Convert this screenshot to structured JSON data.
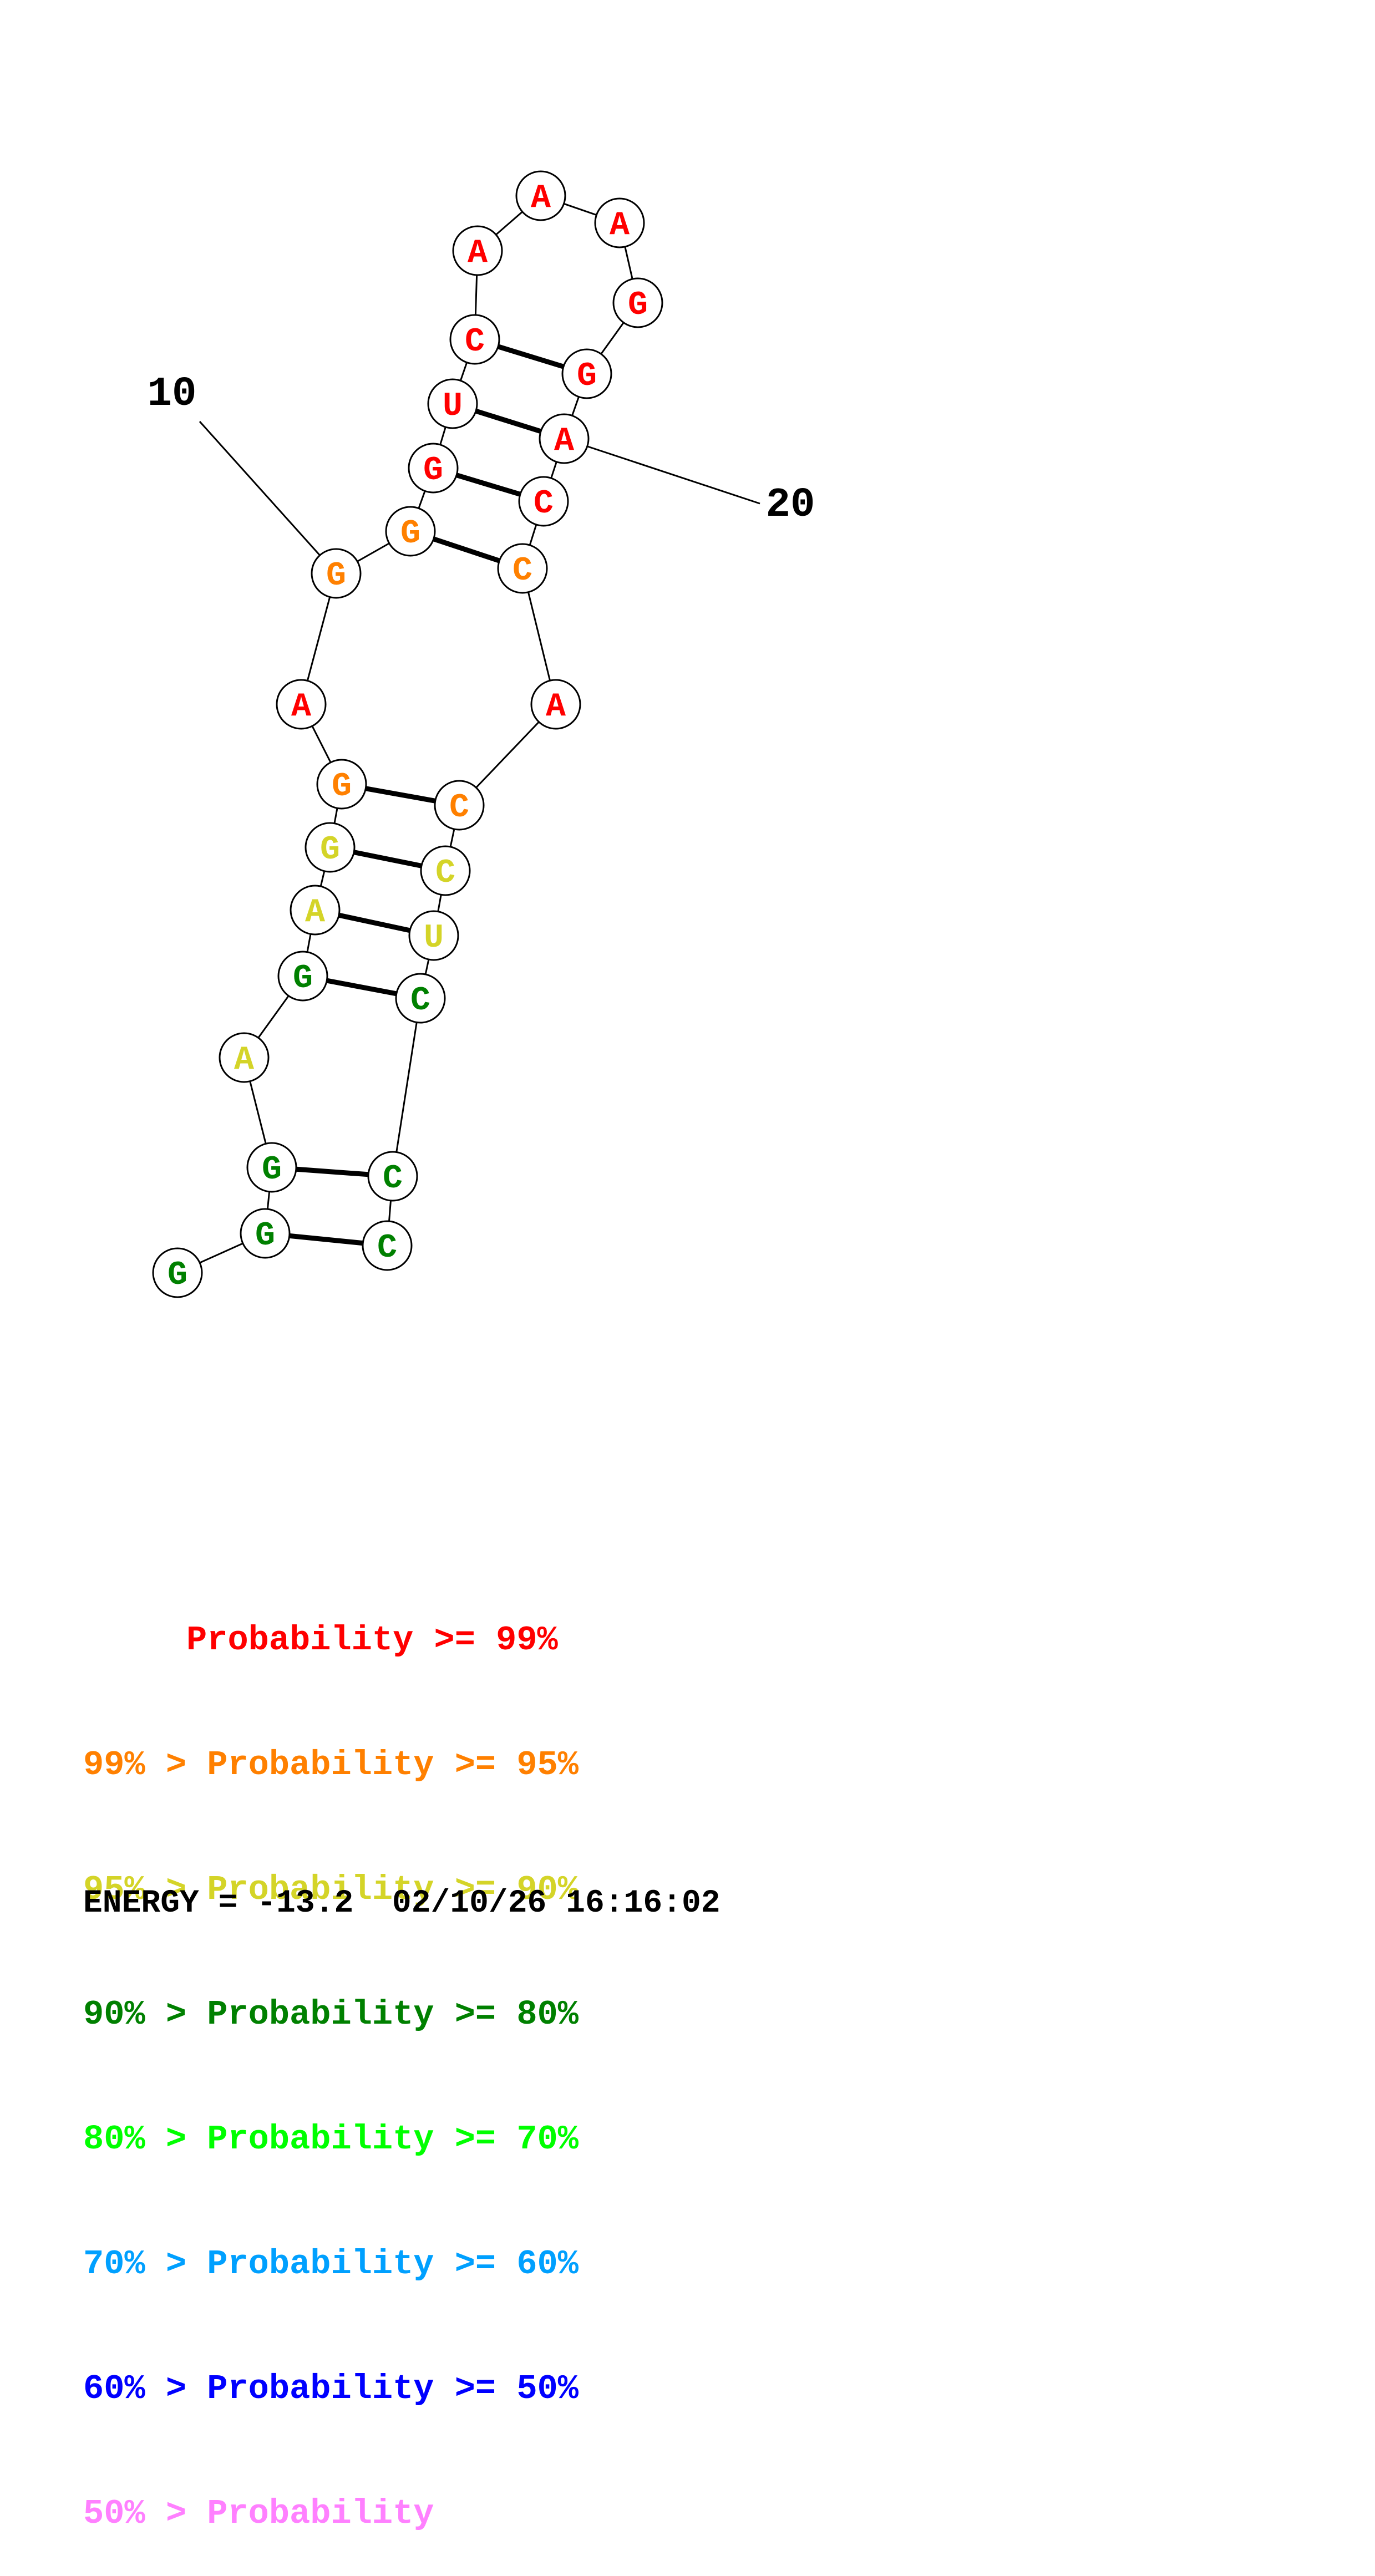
{
  "colors": {
    "red": "#ff0000",
    "orange": "#ff8000",
    "yellow": "#d4d428",
    "dark_green": "#008000",
    "green": "#00ff00",
    "sky": "#00a0ff",
    "blue": "#0000ff",
    "pink": "#ff80ff"
  },
  "nucleotides": [
    {
      "base": "G",
      "color": "dark_green"
    },
    {
      "base": "G",
      "color": "dark_green"
    },
    {
      "base": "G",
      "color": "dark_green"
    },
    {
      "base": "A",
      "color": "yellow"
    },
    {
      "base": "G",
      "color": "dark_green"
    },
    {
      "base": "A",
      "color": "yellow"
    },
    {
      "base": "G",
      "color": "yellow"
    },
    {
      "base": "G",
      "color": "orange"
    },
    {
      "base": "A",
      "color": "red"
    },
    {
      "base": "G",
      "color": "orange"
    },
    {
      "base": "G",
      "color": "orange"
    },
    {
      "base": "G",
      "color": "red"
    },
    {
      "base": "U",
      "color": "red"
    },
    {
      "base": "C",
      "color": "red"
    },
    {
      "base": "A",
      "color": "red"
    },
    {
      "base": "A",
      "color": "red"
    },
    {
      "base": "A",
      "color": "red"
    },
    {
      "base": "G",
      "color": "red"
    },
    {
      "base": "G",
      "color": "red"
    },
    {
      "base": "A",
      "color": "red"
    },
    {
      "base": "C",
      "color": "red"
    },
    {
      "base": "C",
      "color": "orange"
    },
    {
      "base": "A",
      "color": "red"
    },
    {
      "base": "C",
      "color": "orange"
    },
    {
      "base": "C",
      "color": "yellow"
    },
    {
      "base": "U",
      "color": "yellow"
    },
    {
      "base": "C",
      "color": "dark_green"
    },
    {
      "base": "C",
      "color": "dark_green"
    },
    {
      "base": "C",
      "color": "dark_green"
    }
  ],
  "pairs": [
    [
      2,
      29
    ],
    [
      3,
      28
    ],
    [
      5,
      27
    ],
    [
      6,
      26
    ],
    [
      7,
      25
    ],
    [
      8,
      24
    ],
    [
      11,
      22
    ],
    [
      12,
      21
    ],
    [
      13,
      20
    ],
    [
      14,
      19
    ]
  ],
  "position_labels": [
    {
      "text": "10",
      "index": 10
    },
    {
      "text": "20",
      "index": 20
    }
  ],
  "legend": [
    {
      "text": "     Probability >= 99%",
      "color": "red"
    },
    {
      "text": "99% > Probability >= 95%",
      "color": "orange"
    },
    {
      "text": "95% > Probability >= 90%",
      "color": "yellow"
    },
    {
      "text": "90% > Probability >= 80%",
      "color": "dark_green"
    },
    {
      "text": "80% > Probability >= 70%",
      "color": "green"
    },
    {
      "text": "70% > Probability >= 60%",
      "color": "sky"
    },
    {
      "text": "60% > Probability >= 50%",
      "color": "blue"
    },
    {
      "text": "50% > Probability",
      "color": "pink"
    }
  ],
  "energy_line": "ENERGY = -13.2  02/10/26 16:16:02"
}
